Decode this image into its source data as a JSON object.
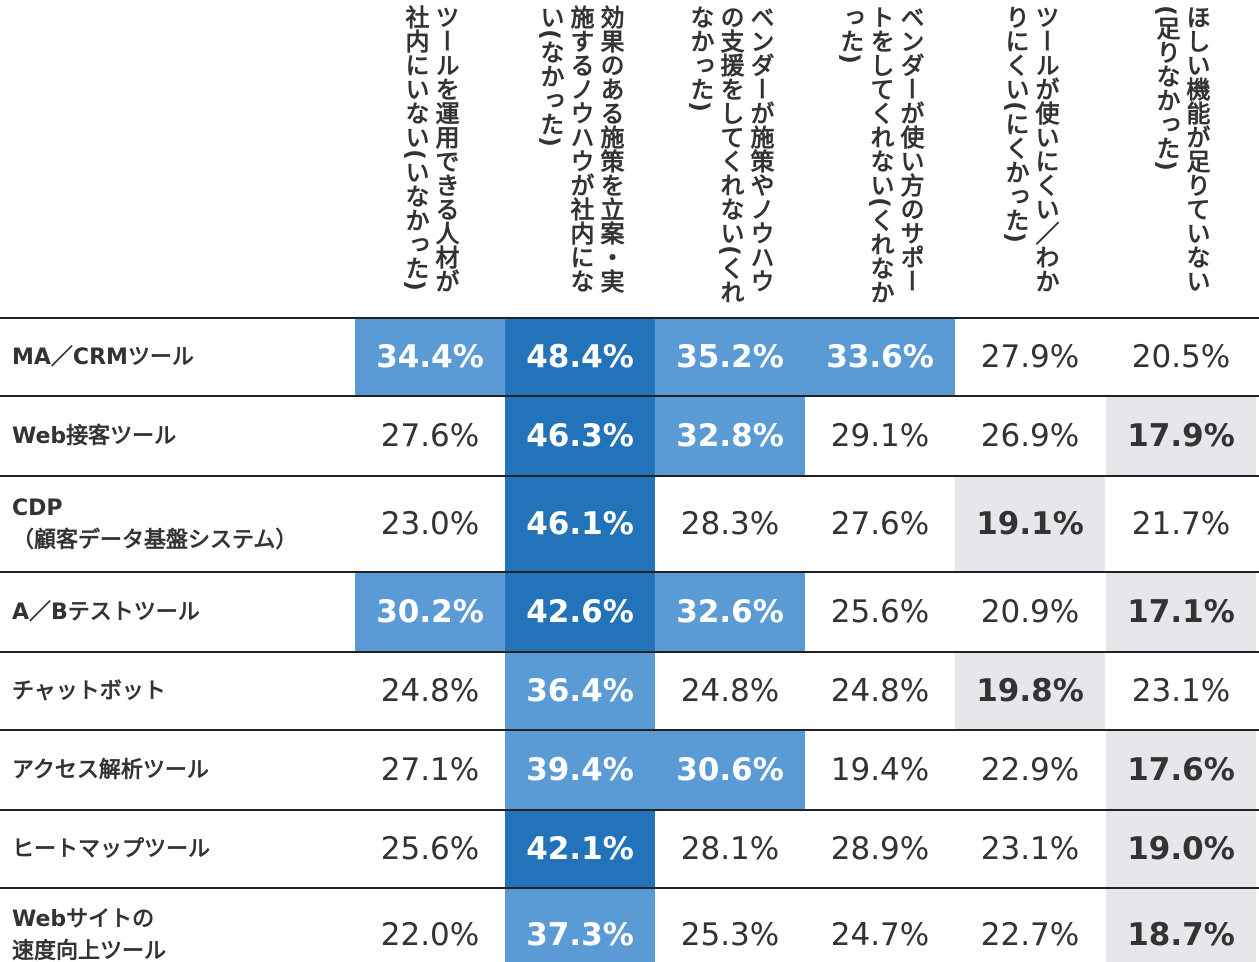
{
  "colors": {
    "dark": "#2273b9",
    "mid": "#5a9bd6",
    "gray": "#e6e7eb",
    "white": "#ffffff",
    "text": "#333333",
    "text_on_blue": "#ffffff",
    "line": "#222222"
  },
  "chart_data": {
    "type": "heatmap",
    "columns": [
      "ツールを運用できる人材が社内にいない(いなかった)",
      "効果のある施策を立案・実施するノウハウが社内にない(なかった)",
      "ベンダーが施策やノウハウの支援をしてくれない(くれなかった)",
      "ベンダーが使い方のサポートをしてくれない(くれなかった)",
      "ツールが使いにくい／わかりにくい(にくかった)",
      "ほしい機能が足りていない(足りなかった)"
    ],
    "rows": [
      {
        "label_lines": [
          "MA／CRMツール"
        ],
        "values": [
          "34.4%",
          "48.4%",
          "35.2%",
          "33.6%",
          "27.9%",
          "20.5%"
        ],
        "levels": [
          "mid",
          "dark",
          "mid",
          "mid",
          "none",
          "none"
        ]
      },
      {
        "label_lines": [
          "Web接客ツール"
        ],
        "values": [
          "27.6%",
          "46.3%",
          "32.8%",
          "29.1%",
          "26.9%",
          "17.9%"
        ],
        "levels": [
          "none",
          "dark",
          "mid",
          "none",
          "none",
          "gray"
        ]
      },
      {
        "label_lines": [
          "CDP",
          "（顧客データ基盤システム）"
        ],
        "values": [
          "23.0%",
          "46.1%",
          "28.3%",
          "27.6%",
          "19.1%",
          "21.7%"
        ],
        "levels": [
          "none",
          "dark",
          "none",
          "none",
          "gray",
          "none"
        ]
      },
      {
        "label_lines": [
          "A／Bテストツール"
        ],
        "values": [
          "30.2%",
          "42.6%",
          "32.6%",
          "25.6%",
          "20.9%",
          "17.1%"
        ],
        "levels": [
          "mid",
          "dark",
          "mid",
          "none",
          "none",
          "gray"
        ]
      },
      {
        "label_lines": [
          "チャットボット"
        ],
        "values": [
          "24.8%",
          "36.4%",
          "24.8%",
          "24.8%",
          "19.8%",
          "23.1%"
        ],
        "levels": [
          "none",
          "mid",
          "none",
          "none",
          "gray",
          "none"
        ]
      },
      {
        "label_lines": [
          "アクセス解析ツール"
        ],
        "values": [
          "27.1%",
          "39.4%",
          "30.6%",
          "19.4%",
          "22.9%",
          "17.6%"
        ],
        "levels": [
          "none",
          "mid",
          "mid",
          "none",
          "none",
          "gray"
        ]
      },
      {
        "label_lines": [
          "ヒートマップツール"
        ],
        "values": [
          "25.6%",
          "42.1%",
          "28.1%",
          "28.9%",
          "23.1%",
          "19.0%"
        ],
        "levels": [
          "none",
          "dark",
          "none",
          "none",
          "none",
          "gray"
        ]
      },
      {
        "label_lines": [
          "Webサイトの",
          "速度向上ツール"
        ],
        "values": [
          "22.0%",
          "37.3%",
          "25.3%",
          "24.7%",
          "22.7%",
          "18.7%"
        ],
        "levels": [
          "none",
          "mid",
          "none",
          "none",
          "none",
          "gray"
        ]
      }
    ]
  }
}
